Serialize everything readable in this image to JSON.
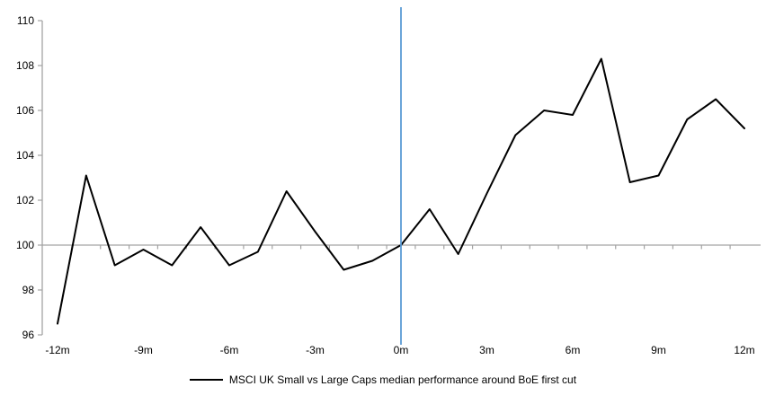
{
  "chart_data": {
    "type": "line",
    "title": "",
    "x": [
      -12,
      -11,
      -10,
      -9,
      -8,
      -7,
      -6,
      -5,
      -4,
      -3,
      -2,
      -1,
      0,
      1,
      2,
      3,
      4,
      5,
      6,
      7,
      8,
      9,
      10,
      11,
      12
    ],
    "x_tick_labels": [
      "-12m",
      "-9m",
      "-6m",
      "-3m",
      "0m",
      "3m",
      "6m",
      "9m",
      "12m"
    ],
    "x_tick_values": [
      -12,
      -9,
      -6,
      -3,
      0,
      3,
      6,
      9,
      12
    ],
    "y_tick_labels": [
      "96",
      "98",
      "100",
      "102",
      "104",
      "106",
      "108",
      "110"
    ],
    "y_tick_values": [
      96,
      98,
      100,
      102,
      104,
      106,
      108,
      110
    ],
    "ylim": [
      96,
      110
    ],
    "baseline_value": 100,
    "grid": "baseline-only",
    "legend_position": "bottom",
    "series": [
      {
        "name": "MSCI UK Small vs Large Caps median performance around BoE first cut",
        "color": "#000000",
        "values": [
          96.5,
          103.1,
          99.1,
          99.8,
          99.1,
          100.8,
          99.1,
          99.7,
          102.4,
          100.6,
          98.9,
          99.3,
          100.0,
          101.6,
          99.6,
          102.3,
          104.9,
          106.0,
          105.8,
          108.3,
          102.8,
          103.1,
          105.6,
          106.5,
          105.2
        ]
      }
    ],
    "event_line": {
      "x": 0,
      "color": "#5B9BD5"
    },
    "axis_color": "#A3A3A3"
  }
}
